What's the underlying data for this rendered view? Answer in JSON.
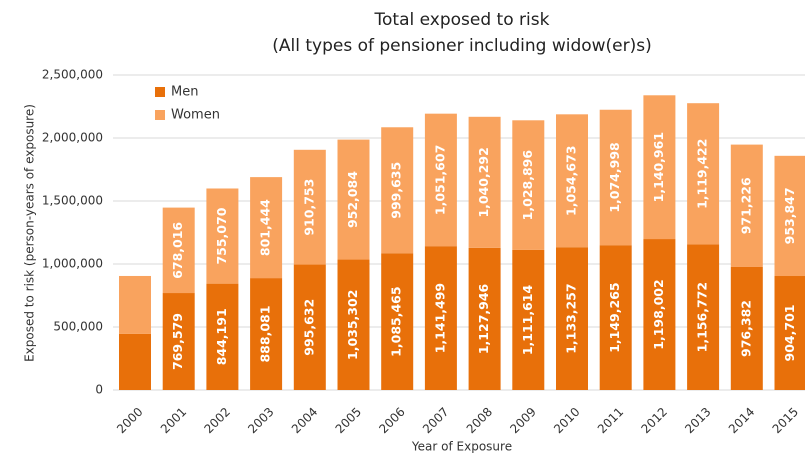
{
  "chart_data": {
    "type": "stacked_bar",
    "title": "Total exposed to risk",
    "subtitle": "(All types of pensioner including widow(er)s)",
    "y_label": "Exposed to risk (person-years of exposure)",
    "x_label": "Year of Exposure",
    "categories": [
      "2000",
      "2001",
      "2002",
      "2003",
      "2004",
      "2005",
      "2006",
      "2007",
      "2008",
      "2009",
      "2010",
      "2011",
      "2012",
      "2013",
      "2014",
      "2015"
    ],
    "series": [
      {
        "name": "Men",
        "color": "#e8700a",
        "values": [
          445000,
          769579,
          844191,
          888081,
          995632,
          1035302,
          1085465,
          1141499,
          1127946,
          1111614,
          1133257,
          1149265,
          1198002,
          1156772,
          976382,
          904701
        ],
        "value_labels": [
          null,
          "769,579",
          "844,191",
          "888,081",
          "995,632",
          "1,035,302",
          "1,085,465",
          "1,141,499",
          "1,127,946",
          "1,111,614",
          "1,133,257",
          "1,149,265",
          "1,198,002",
          "1,156,772",
          "976,382",
          "904,701"
        ]
      },
      {
        "name": "Women",
        "color": "#f9a35e",
        "values": [
          460000,
          678016,
          755070,
          801444,
          910753,
          952084,
          999635,
          1051607,
          1040292,
          1028896,
          1054673,
          1074998,
          1140961,
          1119422,
          971226,
          953847
        ],
        "value_labels": [
          null,
          "678,016",
          "755,070",
          "801,444",
          "910,753",
          "952,084",
          "999,635",
          "1,051,607",
          "1,040,292",
          "1,028,896",
          "1,054,673",
          "1,074,998",
          "1,140,961",
          "1,119,422",
          "971,226",
          "953,847"
        ]
      }
    ],
    "ylim": [
      0,
      2500000
    ],
    "yticks": [
      0,
      {
        "value": 500000,
        "label": "500,000"
      },
      {
        "value": 1000000,
        "label": "1,000,000"
      },
      {
        "value": 1500000,
        "label": "1,500,000"
      },
      {
        "value": 2000000,
        "label": "2,000,000"
      },
      {
        "value": 2500000,
        "label": "2,500,000"
      }
    ],
    "grid": true,
    "legend": "top-left"
  }
}
